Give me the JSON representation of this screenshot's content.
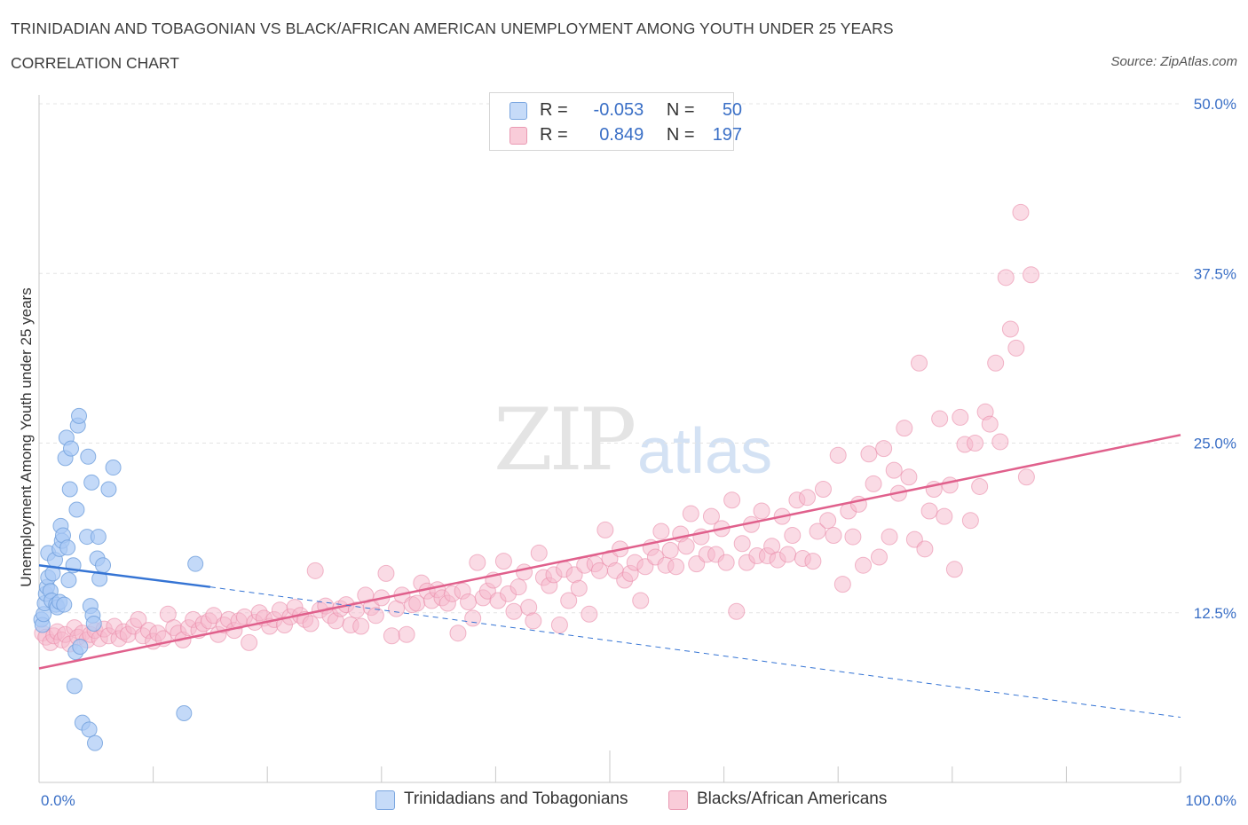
{
  "header": {
    "title": "TRINIDADIAN AND TOBAGONIAN VS BLACK/AFRICAN AMERICAN UNEMPLOYMENT AMONG YOUTH UNDER 25 YEARS",
    "subtitle": "CORRELATION CHART",
    "source": "Source: ZipAtlas.com"
  },
  "watermark": {
    "zip": "ZIP",
    "atlas": "atlas"
  },
  "legend_stats": [
    {
      "r_label": "R =",
      "r_value": "-0.053",
      "n_label": "N =",
      "n_value": "50",
      "color": "#a9c9f5"
    },
    {
      "r_label": "R =",
      "r_value": "0.849",
      "n_label": "N =",
      "n_value": "197",
      "color": "#f6b8cb"
    }
  ],
  "legend_bottom": [
    {
      "label": "Trinidadians and Tobagonians",
      "color": "#a9c9f5"
    },
    {
      "label": "Blacks/African Americans",
      "color": "#f6b8cb"
    }
  ],
  "chart_data": {
    "type": "scatter",
    "ylabel": "Unemployment Among Youth under 25 years",
    "xlim": [
      0,
      100
    ],
    "ylim": [
      0,
      50
    ],
    "x_tick_labels": [
      "0.0%",
      "100.0%"
    ],
    "y_ticks": [
      {
        "value": 12.5,
        "label": "12.5%"
      },
      {
        "value": 25.0,
        "label": "25.0%"
      },
      {
        "value": 37.5,
        "label": "37.5%"
      },
      {
        "value": 50.0,
        "label": "50.0%"
      }
    ],
    "grid": true,
    "colors": {
      "blue_fill": "#a9c9f5",
      "blue_stroke": "#6f9fdc",
      "blue_line": "#3574d4",
      "pink_fill": "#f6b8cb",
      "pink_stroke": "#e98aa8",
      "pink_line": "#e0608c",
      "tick_label": "#3a6fc6"
    },
    "series": [
      {
        "name": "Trinidadians and Tobagonians",
        "trend": {
          "x": [
            0,
            15
          ],
          "y": [
            16.0,
            14.4
          ],
          "dashed_to_x": 100,
          "dashed_to_y": 4.8
        },
        "points": [
          [
            0.2,
            12.0
          ],
          [
            0.3,
            11.6
          ],
          [
            0.4,
            12.4
          ],
          [
            0.5,
            13.2
          ],
          [
            0.6,
            13.9
          ],
          [
            0.7,
            14.4
          ],
          [
            0.8,
            15.1
          ],
          [
            0.8,
            16.9
          ],
          [
            1.0,
            14.1
          ],
          [
            1.1,
            13.4
          ],
          [
            1.2,
            15.4
          ],
          [
            1.4,
            16.4
          ],
          [
            1.5,
            13.1
          ],
          [
            1.6,
            12.9
          ],
          [
            1.8,
            13.3
          ],
          [
            1.8,
            17.2
          ],
          [
            1.9,
            18.9
          ],
          [
            2.0,
            17.8
          ],
          [
            2.1,
            18.2
          ],
          [
            2.2,
            13.1
          ],
          [
            2.3,
            23.9
          ],
          [
            2.4,
            25.4
          ],
          [
            2.5,
            17.3
          ],
          [
            2.6,
            14.9
          ],
          [
            2.7,
            21.6
          ],
          [
            2.8,
            24.6
          ],
          [
            3.0,
            16.0
          ],
          [
            3.1,
            7.1
          ],
          [
            3.2,
            9.6
          ],
          [
            3.3,
            20.1
          ],
          [
            3.4,
            26.3
          ],
          [
            3.5,
            27.0
          ],
          [
            3.6,
            10.0
          ],
          [
            3.8,
            4.4
          ],
          [
            4.2,
            18.1
          ],
          [
            4.3,
            24.0
          ],
          [
            4.4,
            3.9
          ],
          [
            4.5,
            13.0
          ],
          [
            4.6,
            22.1
          ],
          [
            4.7,
            12.3
          ],
          [
            4.8,
            11.7
          ],
          [
            4.9,
            2.9
          ],
          [
            5.1,
            16.5
          ],
          [
            5.2,
            18.1
          ],
          [
            5.3,
            15.0
          ],
          [
            5.6,
            16.0
          ],
          [
            6.1,
            21.6
          ],
          [
            6.5,
            23.2
          ],
          [
            12.7,
            5.1
          ],
          [
            13.7,
            16.1
          ]
        ]
      },
      {
        "name": "Blacks/African Americans",
        "trend": {
          "x": [
            0,
            100
          ],
          "y": [
            8.4,
            25.6
          ]
        },
        "points": [
          [
            0.3,
            11.0
          ],
          [
            0.6,
            10.7
          ],
          [
            1.0,
            10.3
          ],
          [
            1.3,
            10.8
          ],
          [
            1.6,
            11.1
          ],
          [
            2.0,
            10.5
          ],
          [
            2.3,
            10.9
          ],
          [
            2.7,
            10.2
          ],
          [
            3.1,
            11.4
          ],
          [
            3.4,
            10.7
          ],
          [
            3.8,
            11.0
          ],
          [
            4.2,
            10.5
          ],
          [
            4.5,
            10.9
          ],
          [
            4.9,
            11.2
          ],
          [
            5.3,
            10.6
          ],
          [
            5.7,
            11.3
          ],
          [
            6.1,
            10.8
          ],
          [
            6.6,
            11.5
          ],
          [
            7.0,
            10.6
          ],
          [
            7.4,
            11.1
          ],
          [
            7.8,
            10.9
          ],
          [
            8.3,
            11.5
          ],
          [
            8.7,
            12.0
          ],
          [
            9.1,
            10.8
          ],
          [
            9.6,
            11.2
          ],
          [
            10.0,
            10.4
          ],
          [
            10.4,
            11.0
          ],
          [
            10.9,
            10.6
          ],
          [
            11.3,
            12.4
          ],
          [
            11.8,
            11.4
          ],
          [
            12.2,
            11.0
          ],
          [
            12.6,
            10.5
          ],
          [
            13.1,
            11.4
          ],
          [
            13.5,
            12.0
          ],
          [
            14.0,
            11.2
          ],
          [
            14.4,
            11.7
          ],
          [
            14.9,
            11.9
          ],
          [
            15.3,
            12.3
          ],
          [
            15.7,
            10.9
          ],
          [
            16.2,
            11.6
          ],
          [
            16.6,
            12.0
          ],
          [
            17.1,
            11.2
          ],
          [
            17.5,
            11.9
          ],
          [
            18.0,
            12.2
          ],
          [
            18.4,
            10.3
          ],
          [
            18.9,
            11.8
          ],
          [
            19.3,
            12.5
          ],
          [
            19.7,
            12.1
          ],
          [
            20.2,
            11.5
          ],
          [
            20.6,
            12.0
          ],
          [
            21.1,
            12.7
          ],
          [
            21.5,
            11.6
          ],
          [
            22.0,
            12.2
          ],
          [
            22.4,
            12.9
          ],
          [
            22.9,
            12.3
          ],
          [
            23.3,
            12.0
          ],
          [
            23.8,
            11.7
          ],
          [
            24.2,
            15.6
          ],
          [
            24.6,
            12.7
          ],
          [
            25.1,
            13.0
          ],
          [
            25.5,
            12.3
          ],
          [
            26.0,
            11.9
          ],
          [
            26.4,
            12.8
          ],
          [
            26.9,
            13.1
          ],
          [
            27.3,
            11.6
          ],
          [
            27.8,
            12.7
          ],
          [
            28.2,
            11.5
          ],
          [
            28.6,
            13.8
          ],
          [
            29.1,
            12.9
          ],
          [
            29.5,
            12.3
          ],
          [
            30.0,
            13.6
          ],
          [
            30.4,
            15.4
          ],
          [
            30.9,
            10.8
          ],
          [
            31.3,
            12.8
          ],
          [
            31.8,
            13.8
          ],
          [
            32.2,
            10.9
          ],
          [
            32.7,
            13.1
          ],
          [
            33.1,
            13.2
          ],
          [
            33.5,
            14.7
          ],
          [
            34.0,
            14.1
          ],
          [
            34.4,
            13.4
          ],
          [
            34.9,
            14.2
          ],
          [
            35.3,
            13.6
          ],
          [
            35.8,
            13.2
          ],
          [
            36.2,
            13.9
          ],
          [
            36.7,
            11.0
          ],
          [
            37.1,
            14.1
          ],
          [
            37.6,
            13.3
          ],
          [
            38.0,
            12.1
          ],
          [
            38.4,
            16.2
          ],
          [
            38.9,
            13.6
          ],
          [
            39.3,
            14.1
          ],
          [
            39.8,
            14.9
          ],
          [
            40.2,
            13.4
          ],
          [
            40.7,
            16.3
          ],
          [
            41.1,
            13.9
          ],
          [
            41.6,
            12.6
          ],
          [
            42.0,
            14.4
          ],
          [
            42.5,
            15.5
          ],
          [
            42.9,
            12.9
          ],
          [
            43.3,
            11.9
          ],
          [
            43.8,
            16.9
          ],
          [
            44.2,
            15.1
          ],
          [
            44.7,
            14.5
          ],
          [
            45.1,
            15.3
          ],
          [
            45.6,
            11.6
          ],
          [
            46.0,
            15.7
          ],
          [
            46.4,
            13.4
          ],
          [
            46.9,
            15.3
          ],
          [
            47.3,
            14.3
          ],
          [
            47.8,
            16.0
          ],
          [
            48.2,
            12.4
          ],
          [
            48.7,
            16.1
          ],
          [
            49.1,
            15.6
          ],
          [
            49.6,
            18.6
          ],
          [
            50.0,
            16.5
          ],
          [
            50.5,
            15.6
          ],
          [
            50.9,
            17.2
          ],
          [
            51.3,
            14.9
          ],
          [
            51.8,
            15.4
          ],
          [
            52.2,
            16.2
          ],
          [
            52.7,
            13.4
          ],
          [
            53.1,
            15.9
          ],
          [
            53.6,
            17.3
          ],
          [
            54.0,
            16.6
          ],
          [
            54.5,
            18.5
          ],
          [
            54.9,
            16.0
          ],
          [
            55.3,
            17.1
          ],
          [
            55.8,
            15.9
          ],
          [
            56.2,
            18.3
          ],
          [
            56.7,
            17.4
          ],
          [
            57.1,
            19.8
          ],
          [
            57.6,
            16.1
          ],
          [
            58.0,
            18.1
          ],
          [
            58.5,
            16.8
          ],
          [
            58.9,
            19.6
          ],
          [
            59.3,
            16.8
          ],
          [
            59.8,
            18.7
          ],
          [
            60.2,
            16.2
          ],
          [
            60.7,
            20.8
          ],
          [
            61.1,
            12.6
          ],
          [
            61.6,
            17.6
          ],
          [
            62.0,
            16.2
          ],
          [
            62.4,
            19.0
          ],
          [
            62.9,
            16.7
          ],
          [
            63.3,
            20.0
          ],
          [
            63.8,
            16.7
          ],
          [
            64.2,
            17.4
          ],
          [
            64.7,
            16.4
          ],
          [
            65.1,
            19.6
          ],
          [
            65.6,
            16.8
          ],
          [
            66.0,
            18.2
          ],
          [
            66.4,
            20.8
          ],
          [
            66.9,
            16.5
          ],
          [
            67.3,
            21.0
          ],
          [
            67.8,
            16.3
          ],
          [
            68.2,
            18.5
          ],
          [
            68.7,
            21.6
          ],
          [
            69.1,
            19.3
          ],
          [
            69.6,
            18.2
          ],
          [
            70.0,
            24.1
          ],
          [
            70.4,
            14.6
          ],
          [
            70.9,
            20.0
          ],
          [
            71.3,
            18.1
          ],
          [
            71.8,
            20.5
          ],
          [
            72.2,
            16.0
          ],
          [
            72.7,
            24.2
          ],
          [
            73.1,
            22.0
          ],
          [
            73.6,
            16.6
          ],
          [
            74.0,
            24.6
          ],
          [
            74.5,
            18.1
          ],
          [
            74.9,
            23.0
          ],
          [
            75.3,
            21.3
          ],
          [
            75.8,
            26.1
          ],
          [
            76.2,
            22.5
          ],
          [
            76.7,
            17.9
          ],
          [
            77.1,
            30.9
          ],
          [
            77.6,
            17.2
          ],
          [
            78.0,
            20.0
          ],
          [
            78.4,
            21.6
          ],
          [
            78.9,
            26.8
          ],
          [
            79.3,
            19.6
          ],
          [
            79.8,
            21.9
          ],
          [
            80.2,
            15.7
          ],
          [
            80.7,
            26.9
          ],
          [
            81.1,
            24.9
          ],
          [
            81.6,
            19.3
          ],
          [
            82.0,
            25.0
          ],
          [
            82.4,
            21.8
          ],
          [
            82.9,
            27.3
          ],
          [
            83.3,
            26.4
          ],
          [
            83.8,
            30.9
          ],
          [
            84.2,
            25.1
          ],
          [
            84.7,
            37.2
          ],
          [
            85.1,
            33.4
          ],
          [
            85.6,
            32.0
          ],
          [
            86.0,
            42.0
          ],
          [
            86.5,
            22.5
          ],
          [
            86.9,
            37.4
          ]
        ]
      }
    ]
  }
}
